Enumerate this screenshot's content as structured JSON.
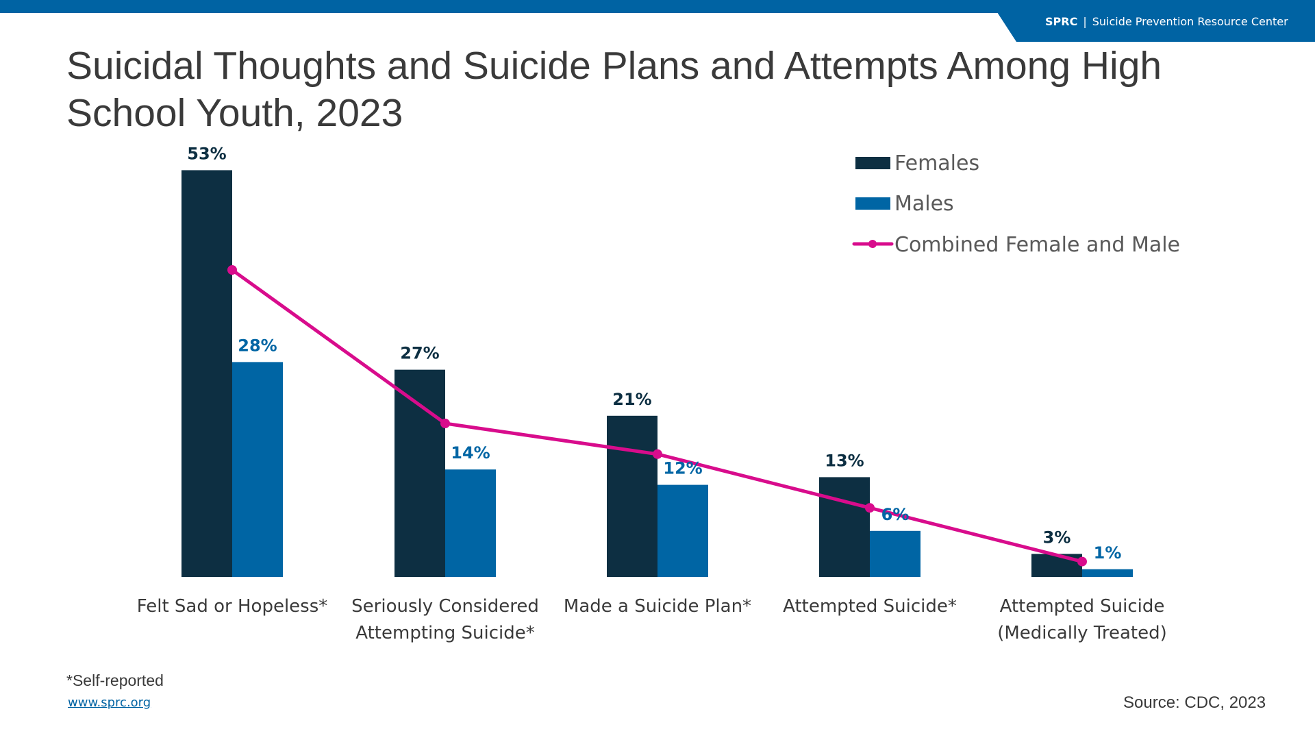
{
  "header": {
    "org_abbr": "SPRC",
    "separator": "|",
    "org_name": "Suicide Prevention Resource Center",
    "brand_color": "#0063a3"
  },
  "title": "Suicidal Thoughts and Suicide Plans and Attempts Among High School Youth, 2023",
  "footer": {
    "footnote": "*Self-reported",
    "link": "www.sprc.org",
    "source": "Source: CDC, 2023"
  },
  "chart_data": {
    "type": "bar",
    "title": "Suicidal Thoughts and Suicide Plans and Attempts Among High School Youth, 2023",
    "xlabel": "",
    "ylabel": "",
    "ylim": [
      0,
      55
    ],
    "grid": false,
    "legend_position": "top-right",
    "categories": [
      [
        "Felt Sad or Hopeless*"
      ],
      [
        "Seriously Considered",
        "Attempting Suicide*"
      ],
      [
        "Made a Suicide Plan*"
      ],
      [
        "Attempted Suicide*"
      ],
      [
        "Attempted Suicide",
        "(Medically Treated)"
      ]
    ],
    "series": [
      {
        "name": "Females",
        "type": "bar",
        "color": "#0d2f42",
        "values": [
          53,
          27,
          21,
          13,
          3
        ],
        "labels": [
          "53%",
          "27%",
          "21%",
          "13%",
          "3%"
        ]
      },
      {
        "name": "Males",
        "type": "bar",
        "color": "#0065a4",
        "values": [
          28,
          14,
          12,
          6,
          1
        ],
        "labels": [
          "28%",
          "14%",
          "12%",
          "6%",
          "1%"
        ]
      },
      {
        "name": "Combined Female and Male",
        "type": "line",
        "color": "#d80c8c",
        "values": [
          40,
          20,
          16,
          9,
          2
        ]
      }
    ]
  }
}
